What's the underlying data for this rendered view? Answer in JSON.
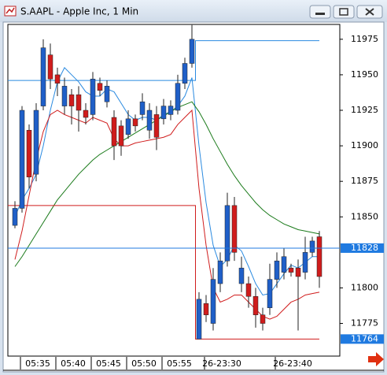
{
  "chart_data": {
    "type": "candlestick",
    "title": "S.AAPL - Apple Inc, 1 Min",
    "categories": [
      null,
      null,
      null,
      "05:35",
      null,
      null,
      null,
      null,
      "05:40",
      null,
      null,
      null,
      null,
      "05:45",
      null,
      null,
      null,
      null,
      "05:50",
      null,
      null,
      null,
      null,
      "05:55",
      null,
      null,
      null,
      null,
      null,
      "26-23:30",
      null,
      null,
      null,
      null,
      null,
      null,
      null,
      null,
      null,
      "26-23:40",
      null,
      null,
      null,
      null
    ],
    "open": [
      11844,
      11856,
      11911,
      11880,
      11928,
      11964,
      11950,
      11928,
      11936,
      11936,
      11925,
      11922,
      11944,
      11931,
      11920,
      11914,
      11908,
      11919,
      11922,
      11911,
      11922,
      11919,
      11922,
      11925,
      11944,
      11958,
      11764,
      11789,
      11775,
      11803,
      11819,
      11858,
      11803,
      11803,
      11794,
      11781,
      11786,
      11806,
      11811,
      11814,
      11814,
      11811,
      11825,
      11836
    ],
    "high": [
      11861,
      11928,
      11915,
      11930,
      11975,
      11972,
      11955,
      11948,
      11940,
      11942,
      11930,
      11952,
      11948,
      11946,
      11925,
      11918,
      11925,
      11922,
      11937,
      11930,
      11928,
      11933,
      11932,
      11950,
      11962,
      11985,
      11797,
      11795,
      11814,
      11825,
      11867,
      11864,
      11822,
      11808,
      11800,
      11786,
      11817,
      11825,
      11828,
      11817,
      11820,
      11836,
      11836,
      11840
    ],
    "low": [
      11842,
      11853,
      11870,
      11875,
      11925,
      11940,
      11935,
      11922,
      11915,
      11910,
      11915,
      11918,
      11935,
      11927,
      11890,
      11893,
      11905,
      11910,
      11918,
      11905,
      11897,
      11915,
      11918,
      11922,
      11940,
      11955,
      11764,
      11776,
      11770,
      11797,
      11815,
      11819,
      11797,
      11786,
      11772,
      11770,
      11781,
      11800,
      11806,
      11808,
      11770,
      11806,
      11822,
      11800
    ],
    "close": [
      11856,
      11925,
      11878,
      11925,
      11969,
      11947,
      11944,
      11942,
      11928,
      11925,
      11920,
      11947,
      11939,
      11942,
      11900,
      11900,
      11919,
      11914,
      11931,
      11925,
      11906,
      11928,
      11928,
      11944,
      11958,
      11975,
      11792,
      11781,
      11806,
      11819,
      11858,
      11825,
      11814,
      11794,
      11781,
      11775,
      11806,
      11819,
      11822,
      11811,
      11808,
      11825,
      11833,
      11808
    ],
    "up_color": "#1f5fc8",
    "down_color": "#d01c1c",
    "overlays": [
      {
        "color": "#2a8ae0",
        "values": [
          11850,
          11862,
          11870,
          11880,
          11900,
          11925,
          11945,
          11955,
          11950,
          11945,
          11938,
          11935,
          11935,
          11940,
          11938,
          11930,
          11922,
          11918,
          11920,
          11920,
          11918,
          11922,
          11924,
          11928,
          11935,
          11948,
          11900,
          11860,
          11830,
          11815,
          11820,
          11830,
          11826,
          11815,
          11803,
          11795,
          11796,
          11803,
          11810,
          11816,
          11814,
          11818,
          11822,
          11822
        ]
      },
      {
        "color": "#d01c1c",
        "values": [
          11820,
          11840,
          11865,
          11890,
          11910,
          11922,
          11925,
          11922,
          11920,
          11918,
          11916,
          11920,
          11918,
          11916,
          11905,
          11900,
          11900,
          11902,
          11903,
          11904,
          11905,
          11906,
          11908,
          11915,
          11920,
          11925,
          11870,
          11830,
          11800,
          11790,
          11792,
          11795,
          11795,
          11790,
          11785,
          11780,
          11778,
          11780,
          11785,
          11790,
          11792,
          11795,
          11796,
          11797
        ]
      },
      {
        "color": "#1a7a1a",
        "values": [
          11815,
          11822,
          11830,
          11838,
          11846,
          11854,
          11862,
          11868,
          11874,
          11880,
          11885,
          11890,
          11894,
          11897,
          11900,
          11903,
          11906,
          11909,
          11912,
          11915,
          11918,
          11921,
          11924,
          11927,
          11929,
          11931,
          11924,
          11915,
          11905,
          11896,
          11887,
          11879,
          11872,
          11866,
          11860,
          11855,
          11851,
          11848,
          11845,
          11843,
          11841,
          11840,
          11839,
          11838
        ]
      },
      {
        "color": "#2a8ae0",
        "step": true,
        "values": [
          11946,
          11946,
          11946,
          11946,
          11946,
          11946,
          11946,
          11946,
          11946,
          11946,
          11946,
          11946,
          11946,
          11946,
          11946,
          11946,
          11946,
          11946,
          11946,
          11946,
          11946,
          11946,
          11946,
          11946,
          11946,
          11946,
          11974,
          11974,
          11974,
          11974,
          11974,
          11974,
          11974,
          11974,
          11974,
          11974,
          11974,
          11974,
          11974,
          11974,
          11974,
          11974,
          11974,
          11974
        ]
      },
      {
        "color": "#d01c1c",
        "step": true,
        "values": [
          11858,
          11858,
          11858,
          11858,
          11858,
          11858,
          11858,
          11858,
          11858,
          11858,
          11858,
          11858,
          11858,
          11858,
          11858,
          11858,
          11858,
          11858,
          11858,
          11858,
          11858,
          11858,
          11858,
          11858,
          11858,
          11858,
          11764,
          11764,
          11764,
          11764,
          11764,
          11764,
          11764,
          11764,
          11764,
          11764,
          11764,
          11764,
          11764,
          11764,
          11764,
          11764,
          11764,
          11764
        ]
      }
    ],
    "price_markers": [
      {
        "value": 11828,
        "color": "#1f7ae0",
        "line": true
      },
      {
        "value": 11764,
        "color": "#1f7ae0",
        "line": false
      }
    ],
    "ylim": [
      11752,
      11986
    ],
    "yticks": [
      11775,
      11800,
      11850,
      11875,
      11900,
      11925,
      11950,
      11975
    ]
  }
}
